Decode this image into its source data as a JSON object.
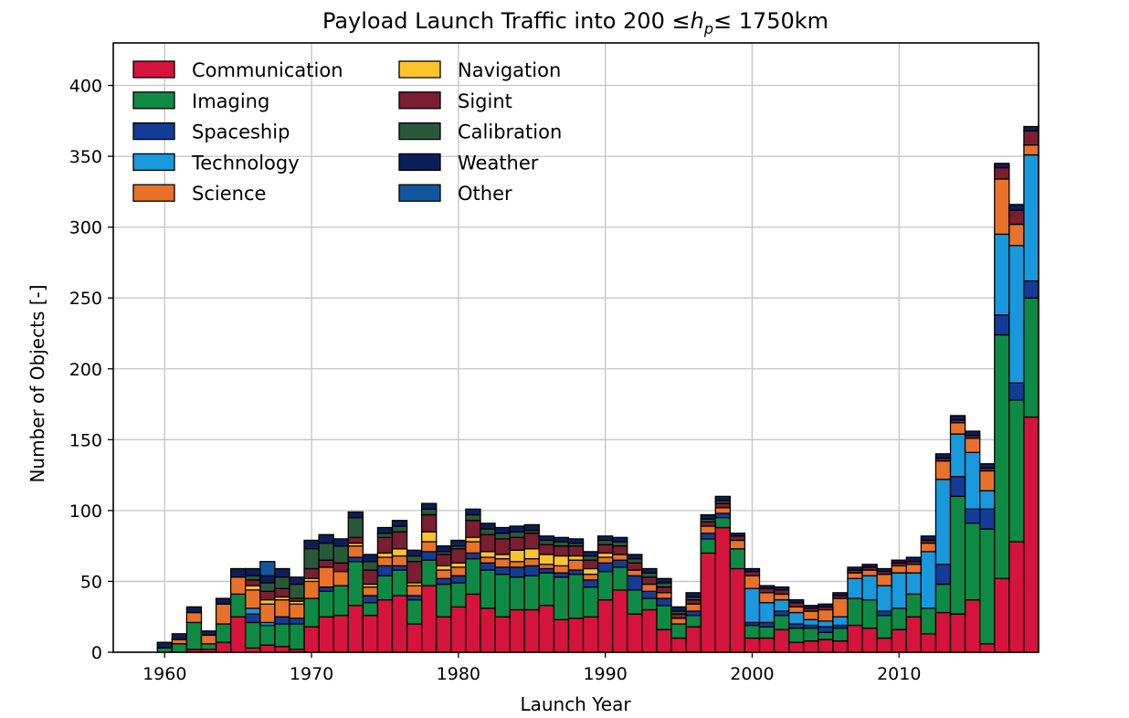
{
  "chart_data": {
    "type": "bar",
    "stacked": true,
    "title_prefix": "Payload Launch Traffic into 200 ",
    "title_le": "≤",
    "title_h": "h",
    "title_sub": "p",
    "title_suffix": " 1750km",
    "xlabel": "Launch Year",
    "ylabel": "Number of Objects [-]",
    "xlim": [
      1956.5,
      2019.5
    ],
    "ylim": [
      0,
      430
    ],
    "xticks": [
      1960,
      1970,
      1980,
      1990,
      2000,
      2010
    ],
    "yticks": [
      0,
      50,
      100,
      150,
      200,
      250,
      300,
      350,
      400
    ],
    "grid": true,
    "legend_location": "top-left",
    "legend_columns": 2,
    "categories": [
      1957,
      1958,
      1959,
      1960,
      1961,
      1962,
      1963,
      1964,
      1965,
      1966,
      1967,
      1968,
      1969,
      1970,
      1971,
      1972,
      1973,
      1974,
      1975,
      1976,
      1977,
      1978,
      1979,
      1980,
      1981,
      1982,
      1983,
      1984,
      1985,
      1986,
      1987,
      1988,
      1989,
      1990,
      1991,
      1992,
      1993,
      1994,
      1995,
      1996,
      1997,
      1998,
      1999,
      2000,
      2001,
      2002,
      2003,
      2004,
      2005,
      2006,
      2007,
      2008,
      2009,
      2010,
      2011,
      2012,
      2013,
      2014,
      2015,
      2016,
      2017,
      2018,
      2019
    ],
    "series": [
      {
        "name": "Communication",
        "color": "#d4143c",
        "values": [
          0,
          0,
          0,
          0,
          0,
          2,
          2,
          7,
          25,
          3,
          5,
          4,
          2,
          18,
          25,
          26,
          33,
          26,
          37,
          40,
          20,
          47,
          25,
          32,
          41,
          31,
          25,
          30,
          30,
          33,
          23,
          24,
          25,
          37,
          44,
          27,
          30,
          16,
          10,
          18,
          70,
          88,
          59,
          10,
          10,
          16,
          7,
          8,
          9,
          8,
          19,
          17,
          10,
          16,
          25,
          13,
          28,
          27,
          37,
          6,
          52,
          78,
          166
        ]
      },
      {
        "name": "Imaging",
        "color": "#0f8a44",
        "values": [
          0,
          0,
          0,
          3,
          6,
          19,
          4,
          13,
          16,
          18,
          14,
          16,
          18,
          20,
          18,
          21,
          31,
          9,
          17,
          18,
          17,
          18,
          23,
          17,
          25,
          27,
          30,
          23,
          24,
          23,
          30,
          31,
          21,
          20,
          16,
          17,
          8,
          17,
          10,
          8,
          10,
          7,
          14,
          9,
          8,
          10,
          10,
          9,
          5,
          9,
          19,
          20,
          16,
          15,
          16,
          18,
          20,
          83,
          54,
          81,
          172,
          100,
          84
        ]
      },
      {
        "name": "Spaceship",
        "color": "#143c96",
        "values": [
          0,
          0,
          0,
          0,
          0,
          0,
          0,
          0,
          0,
          6,
          0,
          5,
          4,
          0,
          3,
          0,
          3,
          5,
          7,
          3,
          3,
          6,
          4,
          5,
          4,
          5,
          5,
          7,
          7,
          3,
          3,
          3,
          5,
          6,
          5,
          10,
          5,
          5,
          0,
          3,
          4,
          3,
          0,
          2,
          3,
          3,
          3,
          2,
          4,
          2,
          0,
          0,
          3,
          0,
          0,
          0,
          14,
          14,
          10,
          14,
          14,
          12,
          12
        ]
      },
      {
        "name": "Technology",
        "color": "#1998dc",
        "values": [
          0,
          0,
          0,
          0,
          0,
          0,
          0,
          0,
          0,
          4,
          2,
          0,
          0,
          0,
          0,
          0,
          0,
          0,
          0,
          0,
          0,
          0,
          0,
          0,
          0,
          0,
          0,
          0,
          0,
          0,
          0,
          0,
          0,
          0,
          0,
          0,
          0,
          0,
          0,
          0,
          0,
          0,
          0,
          24,
          14,
          8,
          8,
          4,
          4,
          6,
          14,
          17,
          18,
          25,
          15,
          40,
          60,
          30,
          40,
          13,
          57,
          97,
          89
        ]
      },
      {
        "name": "Science",
        "color": "#e8722a",
        "values": [
          0,
          0,
          0,
          0,
          3,
          7,
          6,
          14,
          12,
          13,
          13,
          12,
          10,
          12,
          14,
          10,
          8,
          6,
          6,
          7,
          7,
          7,
          6,
          6,
          8,
          4,
          6,
          4,
          5,
          3,
          5,
          7,
          4,
          4,
          4,
          4,
          5,
          4,
          4,
          5,
          5,
          4,
          6,
          9,
          7,
          4,
          4,
          6,
          8,
          13,
          4,
          4,
          8,
          5,
          6,
          6,
          13,
          8,
          10,
          14,
          39,
          15,
          7
        ]
      },
      {
        "name": "Navigation",
        "color": "#fcc42c",
        "values": [
          0,
          0,
          0,
          0,
          0,
          0,
          0,
          0,
          0,
          3,
          3,
          2,
          2,
          2,
          0,
          0,
          2,
          2,
          3,
          5,
          2,
          7,
          3,
          3,
          3,
          4,
          3,
          8,
          7,
          7,
          7,
          3,
          4,
          3,
          0,
          0,
          0,
          0,
          0,
          0,
          0,
          0,
          0,
          0,
          0,
          0,
          0,
          0,
          0,
          0,
          0,
          0,
          0,
          0,
          0,
          0,
          0,
          0,
          0,
          0,
          0,
          0,
          0
        ]
      },
      {
        "name": "Sigint",
        "color": "#7a1e32",
        "values": [
          0,
          0,
          0,
          0,
          0,
          0,
          0,
          0,
          0,
          4,
          6,
          6,
          2,
          7,
          5,
          6,
          4,
          10,
          11,
          12,
          15,
          12,
          8,
          10,
          12,
          12,
          11,
          9,
          11,
          7,
          7,
          7,
          6,
          6,
          6,
          5,
          5,
          4,
          3,
          3,
          3,
          3,
          3,
          3,
          3,
          3,
          3,
          2,
          2,
          2,
          2,
          2,
          2,
          2,
          2,
          2,
          2,
          2,
          2,
          2,
          8,
          10,
          10
        ]
      },
      {
        "name": "Calibration",
        "color": "#2a583a",
        "values": [
          0,
          0,
          0,
          0,
          0,
          0,
          0,
          0,
          0,
          3,
          6,
          8,
          10,
          14,
          12,
          12,
          14,
          6,
          3,
          4,
          4,
          4,
          2,
          2,
          4,
          4,
          4,
          4,
          2,
          3,
          3,
          2,
          3,
          3,
          3,
          3,
          3,
          3,
          2,
          2,
          2,
          2,
          0,
          0,
          0,
          0,
          0,
          0,
          0,
          0,
          0,
          0,
          0,
          0,
          0,
          0,
          0,
          0,
          0,
          0,
          0,
          0,
          0
        ]
      },
      {
        "name": "Weather",
        "color": "#0c1e5a",
        "values": [
          0,
          0,
          0,
          4,
          4,
          4,
          3,
          4,
          6,
          5,
          5,
          6,
          5,
          6,
          6,
          5,
          4,
          5,
          4,
          4,
          4,
          4,
          4,
          4,
          4,
          4,
          4,
          4,
          4,
          3,
          3,
          3,
          3,
          3,
          3,
          3,
          3,
          3,
          3,
          3,
          3,
          3,
          2,
          2,
          2,
          2,
          2,
          2,
          2,
          2,
          2,
          2,
          2,
          2,
          3,
          3,
          3,
          3,
          3,
          3,
          3,
          4,
          3
        ]
      },
      {
        "name": "Other",
        "color": "#12579e",
        "values": [
          0,
          0,
          0,
          0,
          0,
          0,
          0,
          0,
          0,
          0,
          10,
          0,
          0,
          0,
          0,
          0,
          0,
          0,
          0,
          0,
          0,
          0,
          0,
          0,
          0,
          0,
          0,
          0,
          0,
          0,
          0,
          0,
          0,
          0,
          0,
          0,
          0,
          0,
          0,
          0,
          0,
          0,
          0,
          0,
          0,
          0,
          0,
          0,
          0,
          0,
          0,
          0,
          0,
          0,
          0,
          0,
          0,
          0,
          0,
          0,
          0,
          0,
          0
        ]
      }
    ]
  }
}
